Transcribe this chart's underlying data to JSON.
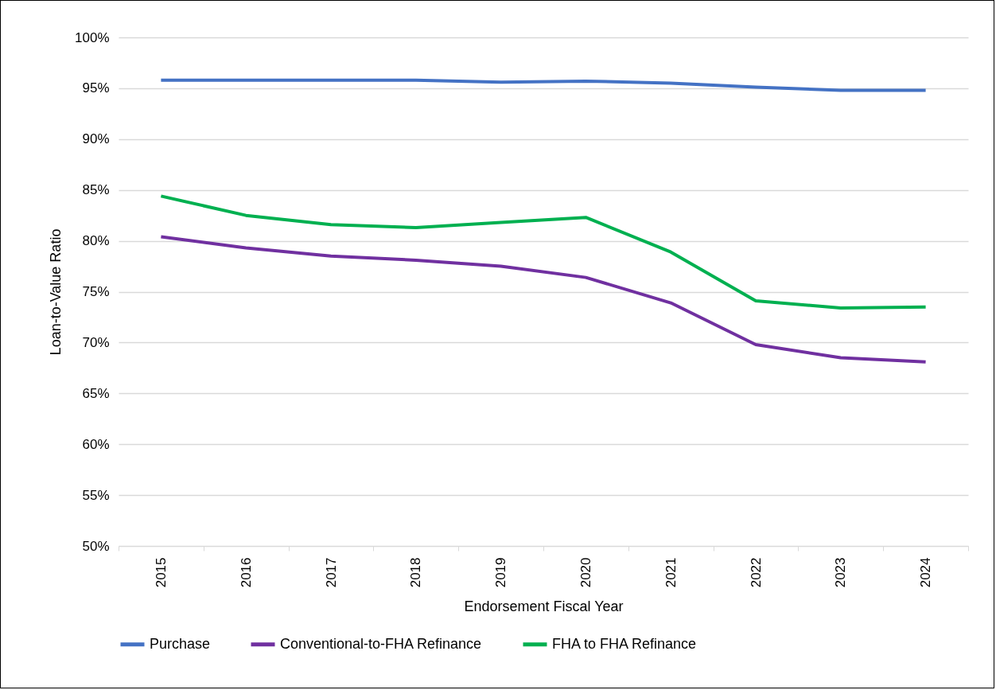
{
  "chart_data": {
    "type": "line",
    "xlabel": "Endorsement Fiscal Year",
    "ylabel": "Loan-to-Value Ratio",
    "categories": [
      "2015",
      "2016",
      "2017",
      "2018",
      "2019",
      "2020",
      "2021",
      "2022",
      "2023",
      "2024"
    ],
    "series": [
      {
        "name": "Purchase",
        "color": "#4472c4",
        "values": [
          95.8,
          95.8,
          95.8,
          95.8,
          95.6,
          95.7,
          95.5,
          95.1,
          94.8,
          94.8
        ]
      },
      {
        "name": "Conventional-to-FHA Refinance",
        "color": "#7030a0",
        "values": [
          80.4,
          79.3,
          78.5,
          78.1,
          77.5,
          76.4,
          73.9,
          69.8,
          68.5,
          68.1
        ]
      },
      {
        "name": "FHA to FHA Refinance",
        "color": "#00b050",
        "values": [
          84.4,
          82.5,
          81.6,
          81.3,
          81.8,
          82.3,
          78.9,
          74.1,
          73.4,
          73.5
        ]
      }
    ],
    "ylim": [
      50,
      100
    ],
    "yticks": [
      {
        "value": 50,
        "label": "50%"
      },
      {
        "value": 55,
        "label": "55%"
      },
      {
        "value": 60,
        "label": "60%"
      },
      {
        "value": 65,
        "label": "65%"
      },
      {
        "value": 70,
        "label": "70%"
      },
      {
        "value": 75,
        "label": "75%"
      },
      {
        "value": 80,
        "label": "80%"
      },
      {
        "value": 85,
        "label": "85%"
      },
      {
        "value": 90,
        "label": "90%"
      },
      {
        "value": 95,
        "label": "95%"
      },
      {
        "value": 100,
        "label": "100%"
      }
    ],
    "grid": "y",
    "legend": "bottom",
    "marker": "none",
    "line_style": "solid"
  }
}
